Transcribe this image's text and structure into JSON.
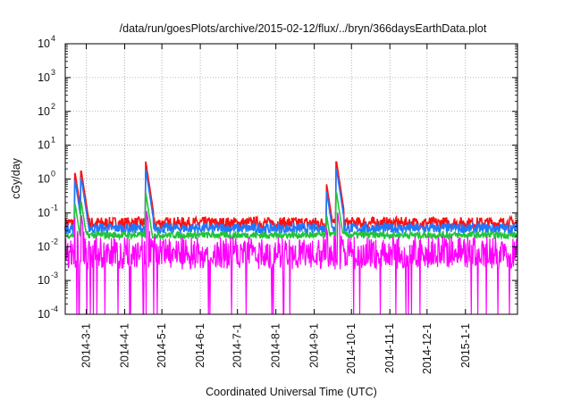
{
  "chart_data": {
    "type": "line",
    "title": "/data/run/goesPlots/archive/2015-02-12/flux/../bryn/366daysEarthData.plot",
    "xlabel": "Coordinated Universal Time (UTC)",
    "ylabel": "cGy/day",
    "xlim": [
      "2014-02-12",
      "2015-02-12"
    ],
    "ylim": [
      0.0001,
      10000
    ],
    "yscale": "log",
    "grid": true,
    "x_ticks": [
      "2014-3-1",
      "2014-4-1",
      "2014-5-1",
      "2014-6-1",
      "2014-7-1",
      "2014-8-1",
      "2014-9-1",
      "2014-10-1",
      "2014-11-1",
      "2014-12-1",
      "2015-1-1"
    ],
    "y_ticks": [
      {
        "value": 0.0001,
        "base": "10",
        "exp": "-4"
      },
      {
        "value": 0.001,
        "base": "10",
        "exp": "-3"
      },
      {
        "value": 0.01,
        "base": "10",
        "exp": "-2"
      },
      {
        "value": 0.1,
        "base": "10",
        "exp": "-1"
      },
      {
        "value": 1,
        "base": "10",
        "exp": "0"
      },
      {
        "value": 10,
        "base": "10",
        "exp": "1"
      },
      {
        "value": 100,
        "base": "10",
        "exp": "2"
      },
      {
        "value": 1000,
        "base": "10",
        "exp": "3"
      },
      {
        "value": 10000,
        "base": "10",
        "exp": "4"
      }
    ],
    "series": [
      {
        "color": "#ff1010",
        "baseline": 0.05,
        "noise": 0.18
      },
      {
        "color": "#1e78ff",
        "baseline": 0.035,
        "noise": 0.15
      },
      {
        "color": "#22c43a",
        "baseline": 0.022,
        "noise": 0.1
      },
      {
        "color": "#ff00ff",
        "baseline": 0.009,
        "noise": 0.35
      }
    ],
    "events": [
      {
        "date": "2014-02-20",
        "peak": 1.5
      },
      {
        "date": "2014-02-25",
        "peak": 1.7
      },
      {
        "date": "2014-04-18",
        "peak": 3.3
      },
      {
        "date": "2014-09-11",
        "peak": 0.7
      },
      {
        "date": "2014-09-19",
        "peak": 3.2
      }
    ],
    "colors": {
      "plot_frame": "#000000",
      "grid": "#a0a0a0"
    }
  }
}
